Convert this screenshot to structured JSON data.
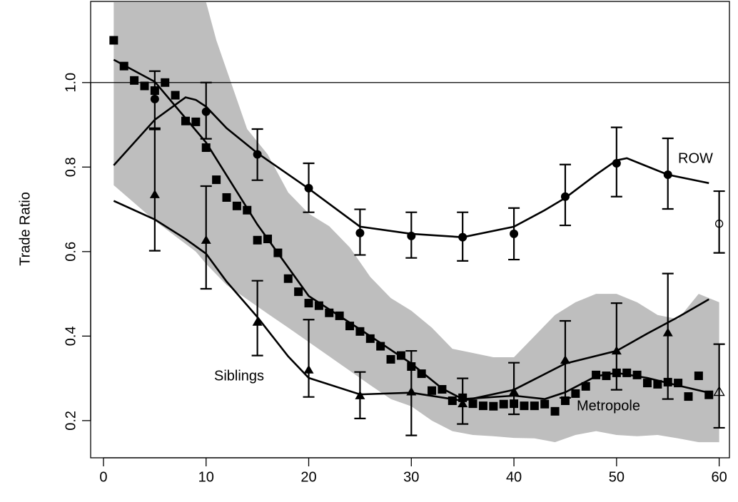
{
  "chart_data": {
    "type": "line",
    "ylabel": "Trade Ratio",
    "xlim": [
      -1.25,
      61.0
    ],
    "ylim": [
      0.112,
      1.192
    ],
    "xticks": [
      0,
      10,
      20,
      30,
      40,
      50,
      60
    ],
    "yticks": [
      0.2,
      0.4,
      0.6,
      0.8,
      {
        "value": 1,
        "label": "1.0"
      }
    ],
    "hline": 1,
    "band": {
      "color": "#bebebe",
      "x": [
        1,
        5,
        9,
        10,
        11,
        12,
        14,
        16,
        18,
        20,
        22,
        24,
        26,
        28,
        30,
        32,
        34,
        36,
        38,
        40,
        42,
        44,
        46,
        48,
        50,
        52,
        54,
        56,
        58,
        60
      ],
      "upper": [
        1.19,
        1.19,
        1.19,
        1.19,
        1.1,
        1.03,
        0.89,
        0.83,
        0.74,
        0.69,
        0.66,
        0.61,
        0.54,
        0.49,
        0.46,
        0.42,
        0.37,
        0.36,
        0.35,
        0.35,
        0.4,
        0.45,
        0.48,
        0.5,
        0.5,
        0.48,
        0.45,
        0.44,
        0.5,
        0.48
      ],
      "lower": [
        0.757,
        0.673,
        0.6,
        0.571,
        0.546,
        0.521,
        0.487,
        0.453,
        0.42,
        0.386,
        0.352,
        0.318,
        0.284,
        0.251,
        0.234,
        0.2,
        0.175,
        0.166,
        0.163,
        0.159,
        0.158,
        0.149,
        0.166,
        0.175,
        0.166,
        0.163,
        0.166,
        0.158,
        0.149,
        0.149
      ]
    },
    "series": [
      {
        "name": "ROW",
        "marker": "circle",
        "color": "#000000",
        "x": [
          5,
          10,
          15,
          20,
          25,
          30,
          35,
          40,
          45,
          50,
          55
        ],
        "values": [
          0.961,
          0.931,
          0.83,
          0.75,
          0.644,
          0.637,
          0.634,
          0.642,
          0.73,
          0.809,
          0.782
        ],
        "upper": [
          1.027,
          1.0,
          0.89,
          0.809,
          0.7,
          0.693,
          0.693,
          0.703,
          0.806,
          0.894,
          0.868
        ],
        "lower": [
          0.892,
          0.867,
          0.769,
          0.693,
          0.592,
          0.585,
          0.578,
          0.581,
          0.662,
          0.73,
          0.701
        ],
        "open_point": {
          "x": 60,
          "value": 0.666,
          "upper": 0.743,
          "lower": 0.597
        },
        "smooth": {
          "x": [
            1,
            5,
            8,
            9,
            10,
            12,
            15,
            20,
            25,
            30,
            35,
            40,
            43,
            45,
            48,
            50,
            51,
            55,
            59
          ],
          "values": [
            0.804,
            0.912,
            0.965,
            0.959,
            0.943,
            0.892,
            0.833,
            0.749,
            0.659,
            0.642,
            0.634,
            0.659,
            0.698,
            0.727,
            0.782,
            0.816,
            0.821,
            0.782,
            0.762
          ]
        }
      },
      {
        "name": "Metropole",
        "marker": "square",
        "color": "#000000",
        "x": [
          1,
          2,
          3,
          4,
          5,
          6,
          7,
          8,
          9,
          10,
          11,
          12,
          13,
          14,
          15,
          16,
          17,
          18,
          19,
          20,
          21,
          22,
          23,
          24,
          25,
          26,
          27,
          28,
          29,
          30,
          31,
          32,
          33,
          34,
          35,
          36,
          37,
          38,
          39,
          40,
          41,
          42,
          43,
          44,
          45,
          46,
          47,
          48,
          49,
          50,
          51,
          52,
          53,
          54,
          55,
          56,
          57,
          58,
          59
        ],
        "values": [
          1.1,
          1.039,
          1.005,
          0.992,
          0.981,
          1.0,
          0.97,
          0.909,
          0.907,
          0.846,
          0.77,
          0.728,
          0.708,
          0.698,
          0.627,
          0.63,
          0.597,
          0.536,
          0.505,
          0.478,
          0.472,
          0.455,
          0.448,
          0.424,
          0.411,
          0.394,
          0.376,
          0.345,
          0.354,
          0.328,
          0.311,
          0.271,
          0.274,
          0.247,
          0.254,
          0.24,
          0.235,
          0.234,
          0.239,
          0.24,
          0.235,
          0.235,
          0.239,
          0.222,
          0.247,
          0.264,
          0.281,
          0.308,
          0.306,
          0.313,
          0.313,
          0.308,
          0.289,
          0.286,
          0.291,
          0.289,
          0.257,
          0.306,
          0.261
        ],
        "smooth": {
          "x": [
            1,
            5,
            10,
            15,
            20,
            25,
            30,
            33,
            35,
            40,
            43,
            45,
            48,
            50,
            53,
            56,
            59
          ],
          "values": [
            1.054,
            1.002,
            0.858,
            0.664,
            0.495,
            0.416,
            0.335,
            0.276,
            0.251,
            0.259,
            0.251,
            0.267,
            0.305,
            0.313,
            0.301,
            0.283,
            0.266
          ]
        }
      },
      {
        "name": "Siblings",
        "marker": "triangle",
        "color": "#000000",
        "x": [
          5,
          10,
          15,
          20,
          25,
          30,
          35,
          40,
          45,
          50,
          55
        ],
        "values": [
          0.735,
          0.627,
          0.433,
          0.32,
          0.259,
          0.268,
          0.24,
          0.268,
          0.343,
          0.365,
          0.408
        ],
        "upper": [
          0.889,
          0.755,
          0.531,
          0.439,
          0.315,
          0.365,
          0.3,
          0.337,
          0.436,
          0.478,
          0.548
        ],
        "lower": [
          0.602,
          0.512,
          0.354,
          0.256,
          0.205,
          0.165,
          0.192,
          0.215,
          0.254,
          0.273,
          0.251
        ],
        "open_point": {
          "x": 60,
          "value": 0.268,
          "upper": 0.381,
          "lower": 0.183
        },
        "smooth": {
          "x": [
            1,
            5,
            8,
            10,
            12,
            15,
            18,
            20,
            25,
            30,
            35,
            40,
            45,
            50,
            53,
            56,
            59
          ],
          "values": [
            0.72,
            0.676,
            0.63,
            0.595,
            0.529,
            0.445,
            0.352,
            0.301,
            0.262,
            0.266,
            0.247,
            0.273,
            0.335,
            0.365,
            0.406,
            0.445,
            0.487
          ]
        }
      }
    ]
  }
}
